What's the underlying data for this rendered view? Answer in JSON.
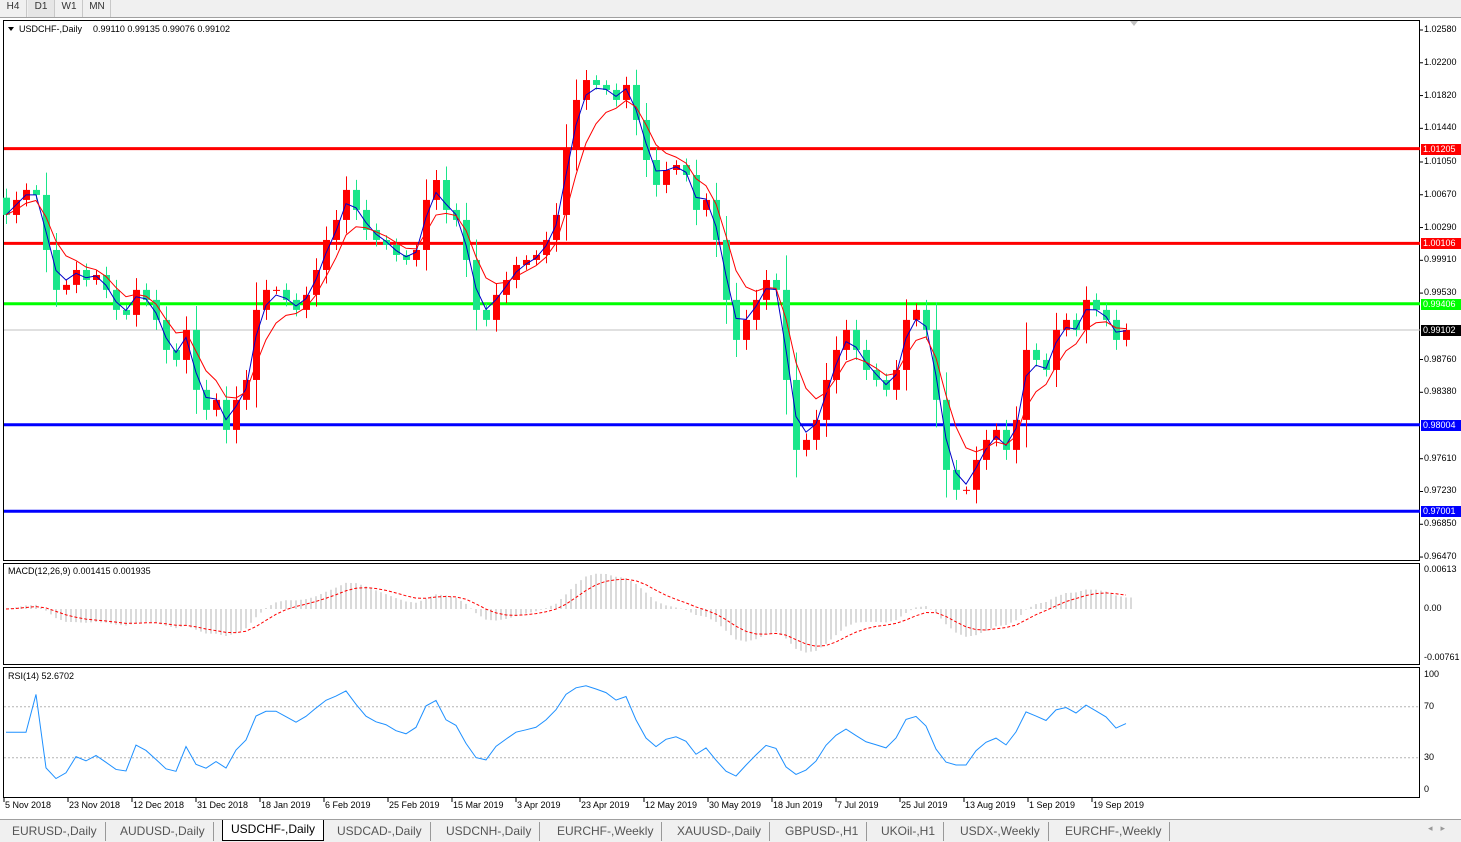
{
  "timeframes": [
    {
      "label": "H4"
    },
    {
      "label": "D1",
      "selected": true
    },
    {
      "label": "W1"
    },
    {
      "label": "MN"
    }
  ],
  "chart": {
    "header": "USDCHF-,Daily",
    "ohlc": "0.99110 0.99135 0.99076 0.99102",
    "macd_label": "MACD(12,26,9) 0.001415 0.001935",
    "rsi_label": "RSI(14) 52.6702"
  },
  "chart_data": {
    "type": "candlestick",
    "symbol": "USDCHF-",
    "timeframe": "Daily",
    "ylim": [
      0.9647,
      1.0258
    ],
    "price_ticks": [
      "1.02580",
      "1.02200",
      "1.01820",
      "1.01440",
      "1.01050",
      "1.00670",
      "1.00290",
      "0.99910",
      "0.99530",
      "0.98760",
      "0.98380",
      "0.97610",
      "0.97230",
      "0.96850",
      "0.96470"
    ],
    "date_ticks": [
      "5 Nov 2018",
      "23 Nov 2018",
      "12 Dec 2018",
      "31 Dec 2018",
      "18 Jan 2019",
      "6 Feb 2019",
      "25 Feb 2019",
      "15 Mar 2019",
      "3 Apr 2019",
      "23 Apr 2019",
      "12 May 2019",
      "30 May 2019",
      "18 Jun 2019",
      "7 Jul 2019",
      "25 Jul 2019",
      "13 Aug 2019",
      "1 Sep 2019",
      "19 Sep 2019"
    ],
    "closes": [
      1.00436,
      1.0061,
      1.00726,
      1.00668,
      1.0003,
      0.99567,
      0.99625,
      0.99798,
      0.99682,
      0.9974,
      0.99567,
      0.99335,
      0.99277,
      0.99567,
      0.99451,
      0.99219,
      0.98871,
      0.98755,
      0.99103,
      0.98408,
      0.98176,
      0.98292,
      0.97944,
      0.98292,
      0.98523,
      0.99335,
      0.99567,
      0.99567,
      0.99451,
      0.99335,
      0.99509,
      0.99798,
      1.00146,
      1.00378,
      1.00726,
      1.00494,
      1.00262,
      1.00146,
      1.00088,
      0.99972,
      0.99914,
      1.0003,
      1.0061,
      1.00841,
      1.00494,
      1.00378,
      0.99914,
      0.99335,
      0.99219,
      0.99509,
      0.99682,
      0.99856,
      0.99914,
      0.99972,
      1.00146,
      1.00436,
      1.01189,
      1.01769,
      1.02,
      1.01943,
      1.01885,
      1.01769,
      1.01943,
      1.01537,
      1.01073,
      1.00784,
      1.00957,
      1.01015,
      1.00899,
      1.00494,
      1.0061,
      1.00146,
      0.99451,
      0.98987,
      0.99219,
      0.99451,
      0.99682,
      0.99567,
      0.98523,
      0.97712,
      0.97828,
      0.9806,
      0.98523,
      0.98871,
      0.99103,
      0.98871,
      0.98639,
      0.98523,
      0.98408,
      0.98639,
      0.99219,
      0.99335,
      0.99103,
      0.98292,
      0.9748,
      0.97249,
      0.97249,
      0.97596,
      0.97828,
      0.97944,
      0.97712,
      0.9806,
      0.98871,
      0.98755,
      0.98639,
      0.99103,
      0.99219,
      0.99103,
      0.99451,
      0.99335,
      0.99219,
      0.98987,
      0.99102
    ],
    "levels": [
      {
        "price": 1.01205,
        "label": "1.01205",
        "color": "#ff0000"
      },
      {
        "price": 1.00106,
        "label": "1.00106",
        "color": "#ff0000"
      },
      {
        "price": 0.99406,
        "label": "0.99406",
        "color": "#00ff00"
      },
      {
        "price": 0.98004,
        "label": "0.98004",
        "color": "#0000ff"
      },
      {
        "price": 0.97001,
        "label": "0.97001",
        "color": "#0000ff"
      }
    ],
    "current": {
      "price": 0.99102,
      "label": "0.99102",
      "color": "#000000"
    },
    "colors": {
      "up": "#ff0000",
      "down": "#19e68a",
      "ma_fast": "#0000c8",
      "ma_slow": "#ff0000",
      "macd_hist": "#b4b4b4",
      "macd_signal": "#ff0000",
      "rsi": "#1e90ff"
    },
    "macd": {
      "ticks": [
        "0.00613",
        "0.00",
        "-0.00761"
      ],
      "ylim": [
        -0.00761,
        0.00613
      ]
    },
    "rsi": {
      "ticks": [
        "100",
        "70",
        "30",
        "0"
      ],
      "levels": [
        70,
        30
      ]
    }
  },
  "tabs": [
    {
      "label": "EURUSD-,Daily"
    },
    {
      "label": "AUDUSD-,Daily"
    },
    {
      "label": "USDCHF-,Daily",
      "selected": true
    },
    {
      "label": "USDCAD-,Daily"
    },
    {
      "label": "USDCNH-,Daily"
    },
    {
      "label": "EURCHF-,Weekly"
    },
    {
      "label": "XAUUSD-,Daily"
    },
    {
      "label": "GBPUSD-,H1"
    },
    {
      "label": "UKOil-,H1"
    },
    {
      "label": "USDX-,Weekly"
    },
    {
      "label": "EURCHF-,Weekly"
    }
  ],
  "scroll": {
    "left": "◂",
    "right": "▸"
  }
}
